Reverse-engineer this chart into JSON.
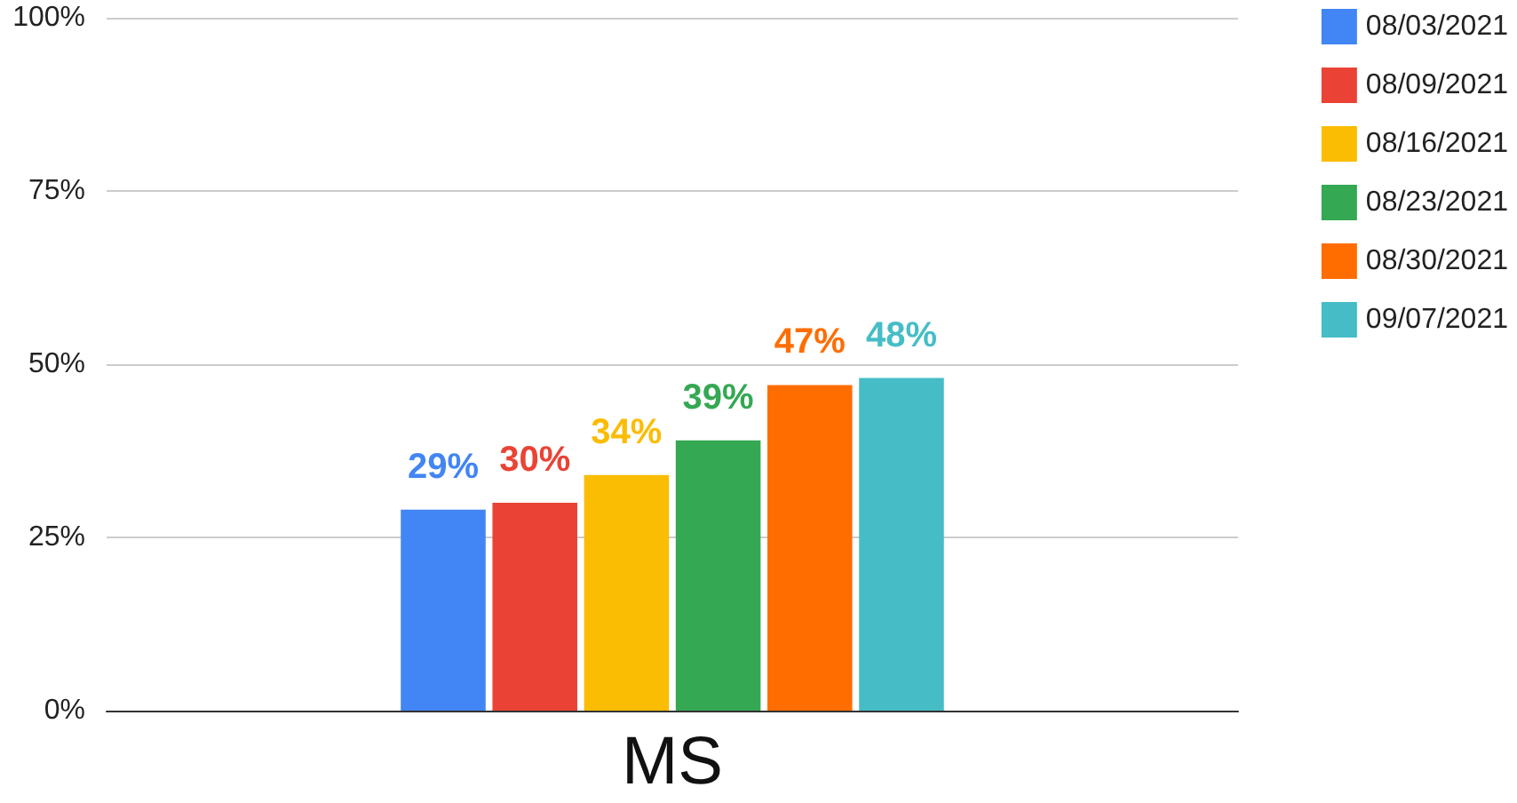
{
  "chart_data": {
    "type": "bar",
    "categories": [
      "MS"
    ],
    "series": [
      {
        "name": "08/03/2021",
        "color": "#4285f4",
        "values": [
          29
        ],
        "value_labels": [
          "29%"
        ]
      },
      {
        "name": "08/09/2021",
        "color": "#ea4335",
        "values": [
          30
        ],
        "value_labels": [
          "30%"
        ]
      },
      {
        "name": "08/16/2021",
        "color": "#fbbc04",
        "values": [
          34
        ],
        "value_labels": [
          "34%"
        ]
      },
      {
        "name": "08/23/2021",
        "color": "#34a853",
        "values": [
          39
        ],
        "value_labels": [
          "39%"
        ]
      },
      {
        "name": "08/30/2021",
        "color": "#ff6d01",
        "values": [
          47
        ],
        "value_labels": [
          "47%"
        ]
      },
      {
        "name": "09/07/2021",
        "color": "#46bdc6",
        "values": [
          48
        ],
        "value_labels": [
          "48%"
        ]
      }
    ],
    "ylim": [
      0,
      100
    ],
    "yticks": [
      {
        "value": 0,
        "label": "0%"
      },
      {
        "value": 25,
        "label": "25%"
      },
      {
        "value": 50,
        "label": "50%"
      },
      {
        "value": 75,
        "label": "75%"
      },
      {
        "value": 100,
        "label": "100%"
      }
    ],
    "grid": "y",
    "legend": "right"
  }
}
